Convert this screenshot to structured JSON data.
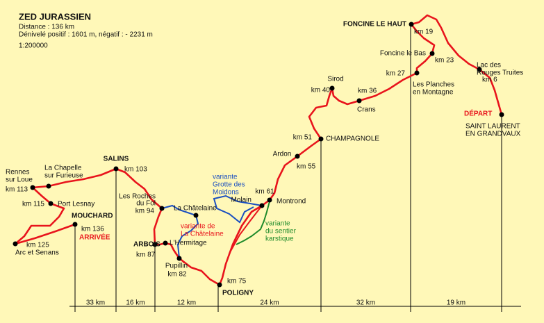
{
  "header": {
    "title": "ZED JURASSIEN",
    "lines": [
      "Distance : 136 km",
      "Dénivelé positif : 1601 m, négatif : - 2231 m",
      "1:200000"
    ]
  },
  "labels": [
    "FONCINE LE HAUT",
    "km 19",
    "Foncine le Bas",
    "km 23",
    "km 27",
    "Les Planches",
    "en Montagne",
    "Lac des",
    "Rouges Truites",
    "km 6",
    "DÉPART",
    "SAINT LAURENT",
    "EN GRANDVAUX",
    "Sirod",
    "km 40",
    "km 36",
    "Crans",
    "km 51",
    "CHAMPAGNOLE",
    "Ardon",
    "km 55",
    "km 61",
    "Montrond",
    "Molain",
    "variante",
    "Grotte des",
    "Moidons",
    "variante",
    "du sentier",
    "karstique",
    "variante de",
    "La Châtelaine",
    "La Châtelaine",
    "Les Roches",
    "du Fol",
    "km 94",
    "SALINS",
    "km 103",
    "La Chapelle",
    "sur Furieuse",
    "Rennes",
    "sur Loue",
    "km 113",
    "km 115",
    "Port Lesnay",
    "MOUCHARD",
    "km 136",
    "ARRIVÉE",
    "km 125",
    "Arc et Senans",
    "ARBOIS",
    "km 87",
    "L'Hermitage",
    "Pupillin",
    "km 82",
    "km 75",
    "POLIGNY"
  ],
  "segments": [
    "33 km",
    "16 km",
    "12 km",
    "24 km",
    "32 km",
    "19 km"
  ]
}
